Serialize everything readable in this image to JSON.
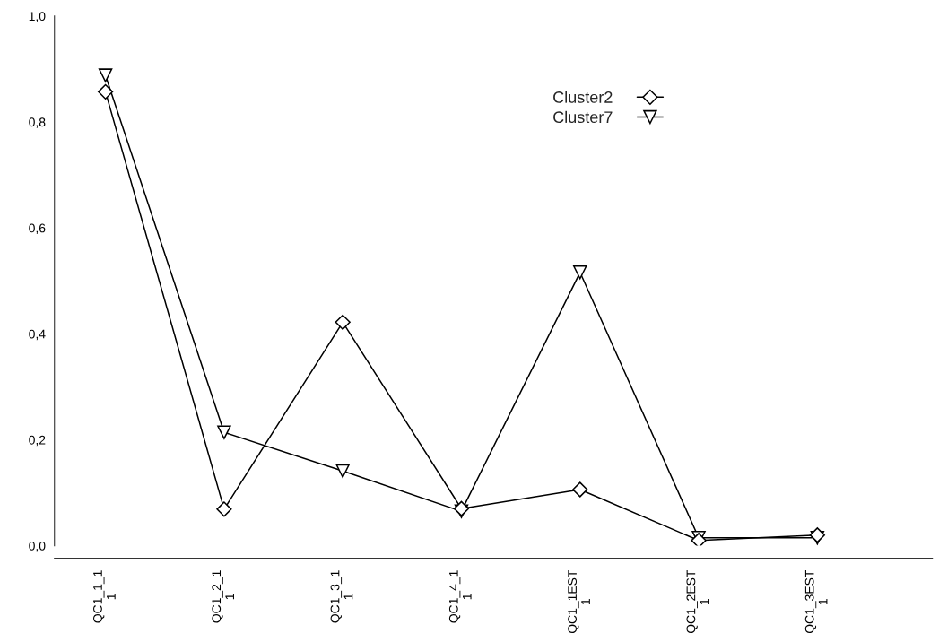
{
  "chart_data": {
    "type": "line",
    "categories": [
      "QC1_1_1\n1",
      "QC1_2_1\n1",
      "QC1_3_1\n1",
      "QC1_4_1\n1",
      "QC1_1EST\n1",
      "QC1_2EST\n1",
      "QC1_3EST\n1"
    ],
    "series": [
      {
        "name": "Cluster2",
        "color": "#000000",
        "marker": "diamond",
        "values": [
          0.857,
          0.069,
          0.422,
          0.07,
          0.106,
          0.01,
          0.02
        ]
      },
      {
        "name": "Cluster7",
        "color": "#000000",
        "marker": "triangle",
        "values": [
          0.888,
          0.214,
          0.141,
          0.065,
          0.516,
          0.015,
          0.015
        ]
      }
    ],
    "ylim": [
      0,
      1.0
    ],
    "yticks": [
      {
        "value": 0,
        "label": "0,0"
      },
      {
        "value": 0.2,
        "label": "0,2"
      },
      {
        "value": 0.4,
        "label": "0,4"
      },
      {
        "value": 0.6,
        "label": "0,6"
      },
      {
        "value": 0.8,
        "label": "0,8"
      },
      {
        "value": 1.0,
        "label": "1,0"
      }
    ],
    "grid": false,
    "legend": "top right",
    "line_style": "solid"
  }
}
